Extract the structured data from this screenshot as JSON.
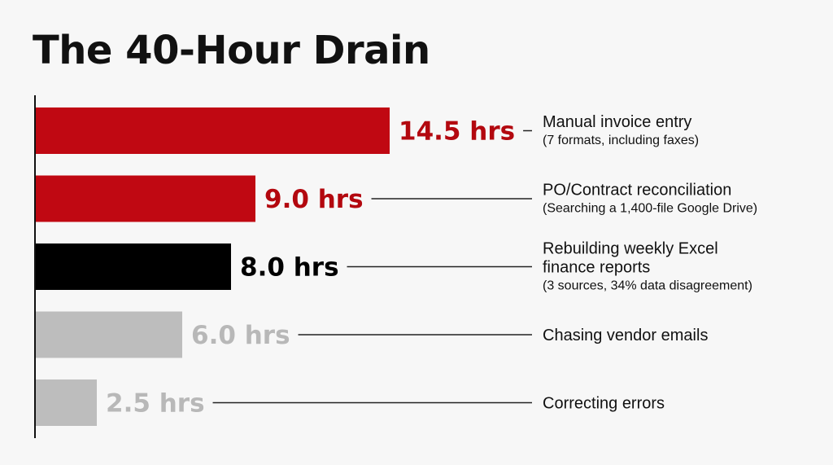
{
  "title": "The 40-Hour Drain",
  "chart_data": {
    "type": "bar",
    "orientation": "horizontal",
    "unit": "hrs",
    "xlim": [
      0,
      15
    ],
    "grid": false,
    "legend": "none",
    "categories": [
      "Manual invoice entry",
      "PO/Contract reconciliation",
      "Rebuilding weekly Excel finance reports",
      "Chasing vendor emails",
      "Correcting errors"
    ],
    "values": [
      14.5,
      9.0,
      8.0,
      6.0,
      2.5
    ],
    "value_labels": [
      "14.5 hrs",
      "9.0 hrs",
      "8.0 hrs",
      "6.0 hrs",
      "2.5 hrs"
    ],
    "label_lines": [
      [
        "Manual invoice entry"
      ],
      [
        "PO/Contract reconciliation"
      ],
      [
        "Rebuilding weekly Excel",
        "finance reports"
      ],
      [
        "Chasing vendor emails"
      ],
      [
        "Correcting errors"
      ]
    ],
    "notes": [
      "(7 formats, including faxes)",
      "(Searching a 1,400-file Google Drive)",
      "(3 sources, 34% data disagreement)",
      "",
      ""
    ],
    "bar_colors": [
      "#c00812",
      "#c00812",
      "#000000",
      "#bdbdbd",
      "#bdbdbd"
    ],
    "value_label_colors": [
      "#b3080f",
      "#b3080f",
      "#000000",
      "#b8b8b8",
      "#b8b8b8"
    ]
  }
}
